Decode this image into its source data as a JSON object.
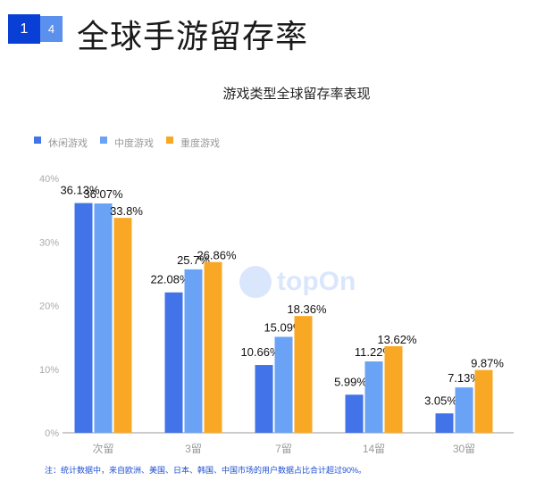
{
  "header": {
    "badge_primary": "1",
    "badge_secondary": "4",
    "title": "全球手游留存率"
  },
  "watermark": "topOn",
  "chart_data": {
    "type": "bar",
    "title": "游戏类型全球留存率表现",
    "categories": [
      "次留",
      "3留",
      "7留",
      "14留",
      "30留"
    ],
    "series": [
      {
        "name": "休闲游戏",
        "color": "#4273e8",
        "values": [
          36.13,
          22.08,
          10.66,
          5.99,
          3.05
        ],
        "labels": [
          "36.13%",
          "22.08%",
          "10.66%",
          "5.99%",
          "3.05%"
        ]
      },
      {
        "name": "中度游戏",
        "color": "#6aa2f5",
        "values": [
          36.07,
          25.7,
          15.09,
          11.22,
          7.13
        ],
        "labels": [
          "36.07%",
          "25.7%",
          "15.09%",
          "11.22%",
          "7.13%"
        ]
      },
      {
        "name": "重度游戏",
        "color": "#f9a825",
        "values": [
          33.8,
          26.86,
          18.36,
          13.62,
          9.87
        ],
        "labels": [
          "33.8%",
          "26.86%",
          "18.36%",
          "13.62%",
          "9.87%"
        ]
      }
    ],
    "yticks": [
      "0%",
      "10%",
      "20%",
      "30%",
      "40%"
    ],
    "ylim": [
      0,
      40
    ],
    "legend": "top-left",
    "grid": false
  },
  "note": "注：统计数据中，来自欧洲、美国、日本、韩国、中国市场的用户数据占比合计超过90%。"
}
